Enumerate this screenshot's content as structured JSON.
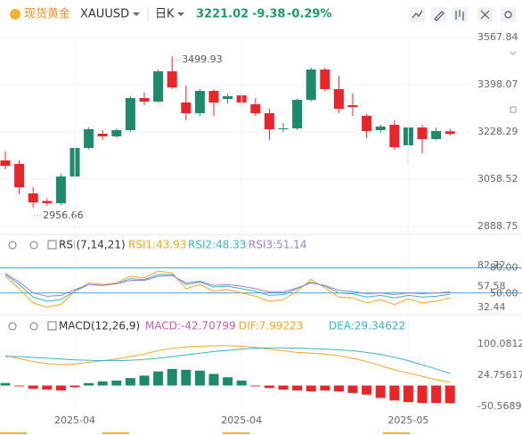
{
  "header": {
    "name": "现货黄金",
    "symbol": "XAUUSD",
    "period": "日K",
    "price": 3221.02,
    "change": -9.38,
    "change_pct": "-0.29%",
    "color": "#1f9a6b",
    "name_color": "#e8912e"
  },
  "chart_data": [
    {
      "type": "candlestick",
      "categories": [
        null,
        null,
        null,
        null,
        null,
        "2025-04",
        null,
        null,
        null,
        null,
        null,
        null,
        null,
        null,
        null,
        null,
        null,
        "2025-04",
        null,
        null,
        null,
        null,
        null,
        null,
        null,
        null,
        null,
        null,
        null,
        "2025-05",
        null,
        null,
        null
      ],
      "open": [
        3125.8,
        3113.0,
        3007.2,
        2980.0,
        2972.0,
        3068.1,
        3170.6,
        3221.9,
        3212.3,
        3234.7,
        3350.0,
        3337.2,
        3446.1,
        3334.0,
        3295.5,
        3375.6,
        3346.8,
        3359.6,
        3327.6,
        3295.5,
        3237.9,
        3241.1,
        3343.6,
        3452.5,
        3382.0,
        3324.4,
        3286.0,
        3234.7,
        3253.9,
        3180.2,
        3244.3,
        3202.6,
        3230.4
      ],
      "high": [
        3157.8,
        3125.8,
        3029.7,
        2990.0,
        3077.7,
        3175.0,
        3244.3,
        3235.0,
        3240.0,
        3356.4,
        3369.2,
        3452.5,
        3499.93,
        3394.9,
        3382.0,
        3382.0,
        3365.0,
        3369.0,
        3350.0,
        3311.6,
        3260.3,
        3348.0,
        3458.9,
        3458.9,
        3430.1,
        3366.0,
        3292.0,
        3255.0,
        3270.0,
        3250.0,
        3254.0,
        3244.0,
        3240.0
      ],
      "low": [
        3093.7,
        3004.0,
        2956.66,
        2962.0,
        2965.0,
        3060.0,
        3165.0,
        3200.0,
        3208.0,
        3228.0,
        3324.4,
        3333.0,
        3382.0,
        3269.9,
        3286.0,
        3286.0,
        3330.0,
        3318.0,
        3286.0,
        3199.4,
        3228.3,
        3235.0,
        3337.0,
        3375.6,
        3295.5,
        3286.0,
        3205.9,
        3225.0,
        3164.2,
        3116.1,
        3151.4,
        3198.0,
        3215.0
      ],
      "close": [
        3106.5,
        3029.7,
        2975.0,
        2972.0,
        3068.1,
        3170.6,
        3237.9,
        3212.3,
        3234.7,
        3350.0,
        3337.2,
        3446.1,
        3388.4,
        3295.5,
        3375.6,
        3334.0,
        3356.4,
        3334.0,
        3295.5,
        3237.9,
        3241.1,
        3343.6,
        3452.5,
        3382.0,
        3311.6,
        3318.0,
        3231.5,
        3247.5,
        3173.8,
        3244.3,
        3202.6,
        3231.5,
        3221.02
      ],
      "up_color": "#1f8a6a",
      "down_color": "#e8262a",
      "ylim": [
        2888.75,
        3567.84
      ],
      "yticks": [
        3567.84,
        3398.07,
        3228.29,
        3058.52,
        2888.75
      ],
      "grid": true
    },
    {
      "type": "line",
      "title": "RSI(7,14,21)",
      "series": [
        {
          "name": "RSI1:43.93",
          "color": "#f5a623",
          "values": [
            70,
            55,
            38,
            33,
            36,
            52,
            62,
            60,
            62,
            70,
            68,
            76,
            74,
            55,
            60,
            52,
            54,
            50,
            46,
            40,
            42,
            52,
            66,
            56,
            45,
            44,
            38,
            42,
            36,
            43,
            38,
            40,
            43.93
          ]
        },
        {
          "name": "RSI2:48.33",
          "color": "#3bb3c3",
          "values": [
            72,
            60,
            45,
            40,
            42,
            52,
            60,
            59,
            61,
            67,
            66,
            72,
            72,
            60,
            63,
            57,
            58,
            55,
            52,
            47,
            48,
            55,
            63,
            58,
            50,
            49,
            45,
            47,
            44,
            47,
            45,
            46,
            48.33
          ]
        },
        {
          "name": "RSI3:51.14",
          "color": "#9b7fd4",
          "values": [
            73,
            63,
            50,
            46,
            47,
            54,
            60,
            59,
            61,
            65,
            65,
            70,
            71,
            62,
            64,
            59,
            60,
            58,
            55,
            51,
            51,
            56,
            62,
            59,
            53,
            52,
            49,
            50,
            48,
            50,
            49,
            50,
            51.14
          ]
        }
      ],
      "ref_lines": [
        {
          "value": 80,
          "label": "80.00"
        },
        {
          "value": 50,
          "label": "50.00"
        }
      ],
      "ref_color": "#4aa3df",
      "ylim": [
        32.44,
        82.72
      ],
      "yticks": [
        82.72,
        57.58,
        32.44
      ]
    },
    {
      "type": "macd",
      "title": "MACD(12,26,9)",
      "series": [
        {
          "name": "MACD:-42.70799",
          "type": "bar",
          "color": "#c45fa8",
          "up_color": "#1f8a6a",
          "down_color": "#e8262a",
          "values": [
            6,
            -2,
            -8,
            -10,
            -12,
            -4,
            6,
            10,
            12,
            18,
            24,
            34,
            40,
            38,
            36,
            28,
            20,
            12,
            -2,
            -6,
            -10,
            -12,
            -14,
            -12,
            -14,
            -18,
            -22,
            -30,
            -36,
            -40,
            -42,
            -42,
            -42.70799
          ]
        },
        {
          "name": "DIF:7.99223",
          "type": "line",
          "color": "#f5a623",
          "values": [
            72,
            65,
            58,
            53,
            50,
            52,
            56,
            60,
            64,
            70,
            76,
            84,
            90,
            93,
            95,
            96,
            96,
            95,
            92,
            88,
            84,
            80,
            78,
            76,
            72,
            66,
            58,
            48,
            38,
            30,
            22,
            14,
            7.99223
          ]
        },
        {
          "name": "DEA:29.34622",
          "type": "line",
          "color": "#3bb3c3",
          "values": [
            70,
            70,
            68,
            66,
            64,
            62,
            61,
            60,
            60,
            61,
            63,
            66,
            70,
            74,
            78,
            82,
            85,
            88,
            90,
            91,
            91,
            90,
            89,
            88,
            86,
            84,
            80,
            75,
            68,
            60,
            50,
            40,
            29.34622
          ]
        }
      ],
      "ylim": [
        -50.56892,
        100.08126
      ],
      "yticks": [
        100.08126,
        24.75617,
        -50.56892
      ]
    }
  ]
}
